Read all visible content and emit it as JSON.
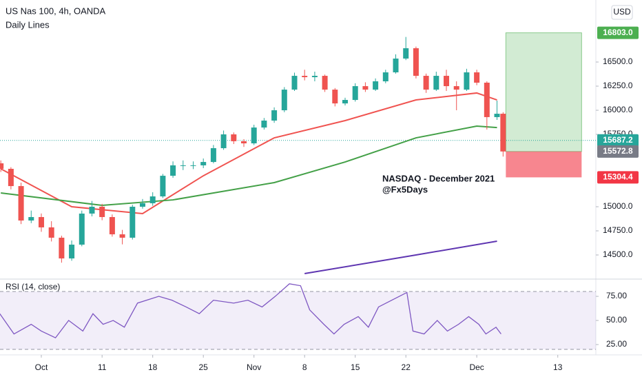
{
  "chart_data": [
    {
      "type": "candlestick",
      "title": "US Nas 100, 4h, OANDA",
      "subtitle": "Daily Lines",
      "currency": "USD",
      "annotations": [
        "NASDAQ - December 2021",
        "@Fx5Days"
      ],
      "up_color": "#26a69a",
      "down_color": "#ef5350",
      "xlim": [
        -4.08,
        54.76
      ],
      "xticks": [
        {
          "value": 0,
          "label": "Oct"
        },
        {
          "value": 6,
          "label": "11"
        },
        {
          "value": 11,
          "label": "18"
        },
        {
          "value": 16,
          "label": "25"
        },
        {
          "value": 21,
          "label": "Nov"
        },
        {
          "value": 26,
          "label": "8"
        },
        {
          "value": 31,
          "label": "15"
        },
        {
          "value": 36,
          "label": "22"
        },
        {
          "value": 43,
          "label": "Dec"
        },
        {
          "value": 51,
          "label": "13"
        }
      ],
      "ylim": [
        14250,
        17143
      ],
      "yticks": [
        {
          "value": 14500,
          "label": "14500.0"
        },
        {
          "value": 14750,
          "label": "14750.0"
        },
        {
          "value": 15000,
          "label": "15000.0"
        },
        {
          "value": 15750,
          "label": "15750.0"
        },
        {
          "value": 16000,
          "label": "16000.0"
        },
        {
          "value": 16250,
          "label": "16250.0"
        },
        {
          "value": 16500,
          "label": "16500.0"
        }
      ],
      "x": [
        -4,
        -3,
        -2,
        -1,
        0,
        1,
        2,
        3,
        4,
        5,
        6,
        7,
        8,
        9,
        10,
        11,
        12,
        13,
        14,
        15,
        16,
        17,
        18,
        19,
        20,
        21,
        22,
        23,
        24,
        25,
        26,
        27,
        28,
        29,
        30,
        31,
        32,
        33,
        34,
        35,
        36,
        37,
        38,
        39,
        40,
        41,
        42,
        43,
        44,
        45,
        45.6
      ],
      "open": [
        15450,
        15393,
        15214,
        14857,
        14893,
        14786,
        14679,
        14464,
        14607,
        14929,
        15000,
        14893,
        14714,
        14679,
        15000,
        15036,
        15107,
        15321,
        15429,
        15429,
        15429,
        15464,
        15607,
        15750,
        15679,
        15657,
        15821,
        15893,
        16000,
        16214,
        16357,
        16343,
        16357,
        16214,
        16071,
        16107,
        16250,
        16214,
        16300,
        16393,
        16536,
        16643,
        16357,
        16214,
        16357,
        16250,
        16214,
        16393,
        16286,
        15929,
        15964
      ],
      "high": [
        15480,
        15410,
        15250,
        14960,
        14930,
        14850,
        14700,
        14650,
        14960,
        15060,
        15030,
        14920,
        14760,
        15020,
        15080,
        15150,
        15340,
        15470,
        15480,
        15470,
        15500,
        15640,
        15790,
        15770,
        15700,
        15850,
        15920,
        16030,
        16240,
        16390,
        16420,
        16400,
        16370,
        16230,
        16130,
        16280,
        16290,
        16330,
        16420,
        16580,
        16760,
        16660,
        16380,
        16400,
        16420,
        16300,
        16430,
        16420,
        16300,
        16100,
        15980
      ],
      "low": [
        15360,
        15180,
        14820,
        14830,
        14740,
        14640,
        14420,
        14440,
        14590,
        14900,
        14860,
        14690,
        14610,
        14660,
        14980,
        15010,
        15090,
        15300,
        15380,
        15390,
        15400,
        15450,
        15590,
        15650,
        15620,
        15640,
        15800,
        15870,
        15980,
        16200,
        16310,
        16300,
        16190,
        16040,
        16050,
        16090,
        16190,
        16200,
        16280,
        16380,
        16520,
        16330,
        16180,
        16200,
        16200,
        16000,
        16200,
        16260,
        15800,
        15900,
        15520
      ],
      "close": [
        15393,
        15214,
        14857,
        14893,
        14786,
        14679,
        14464,
        14607,
        14929,
        15000,
        14893,
        14714,
        14679,
        15000,
        15036,
        15107,
        15321,
        15429,
        15429,
        15429,
        15464,
        15607,
        15750,
        15679,
        15657,
        15821,
        15893,
        16000,
        16214,
        16357,
        16343,
        16357,
        16214,
        16071,
        16107,
        16250,
        16214,
        16300,
        16393,
        16536,
        16643,
        16357,
        16214,
        16357,
        16250,
        16214,
        16393,
        16286,
        15929,
        15964,
        15572.8
      ],
      "lines": [
        {
          "color": "#f05350",
          "x": [
            -4,
            3,
            10,
            16,
            23,
            30,
            37,
            43,
            45
          ],
          "values": [
            15393,
            15000,
            14929,
            15321,
            15714,
            15893,
            16107,
            16179,
            16107
          ]
        },
        {
          "color": "#43a047",
          "x": [
            -4,
            6,
            13,
            23,
            30,
            37,
            43,
            45
          ],
          "values": [
            15143,
            15014,
            15071,
            15250,
            15464,
            15714,
            15836,
            15821
          ]
        },
        {
          "color": "#5e35b1",
          "x": [
            26,
            37,
            45
          ],
          "values": [
            14307,
            14500,
            14643
          ]
        }
      ],
      "current_price": {
        "value": 15687.2,
        "label": "15687.2",
        "color": "#26a69a"
      },
      "position": {
        "target": {
          "value": 16803,
          "label": "16803.0",
          "color": "#4caf50"
        },
        "entry": {
          "value": 15572.8,
          "label": "15572.8",
          "color": "#787b86"
        },
        "stop": {
          "value": 15304.4,
          "label": "15304.4",
          "color": "#f23645"
        }
      }
    },
    {
      "type": "line",
      "title": "RSI (14, close)",
      "color": "#7e57c2",
      "ylim": [
        14.3,
        92.9
      ],
      "yticks": [
        {
          "value": 25,
          "label": "25.00"
        },
        {
          "value": 50,
          "label": "50.00"
        },
        {
          "value": 75,
          "label": "75.00"
        }
      ],
      "bands": [
        20,
        80
      ],
      "x": [
        -4.1,
        -2.7,
        -1.0,
        0,
        1.4,
        2.7,
        4.1,
        5.1,
        6.1,
        7.1,
        8.2,
        9.5,
        11.6,
        12.9,
        14.3,
        15.6,
        17.0,
        19.0,
        20.4,
        21.8,
        23.1,
        24.5,
        25.6,
        26.5,
        27.9,
        28.9,
        29.9,
        31.3,
        32.3,
        33.3,
        34.6,
        36.1,
        36.7,
        37.8,
        39.1,
        40.1,
        41.2,
        42.2,
        43.2,
        43.9,
        44.9,
        45.4
      ],
      "values": [
        57,
        36,
        46,
        39,
        32,
        50,
        39,
        57,
        46,
        50,
        43,
        68,
        75,
        71,
        64,
        57,
        71,
        68,
        71,
        64,
        75,
        88,
        86,
        61,
        46,
        36,
        46,
        54,
        43,
        64,
        71,
        79,
        39,
        36,
        50,
        39,
        46,
        54,
        46,
        36,
        43,
        36
      ]
    }
  ]
}
